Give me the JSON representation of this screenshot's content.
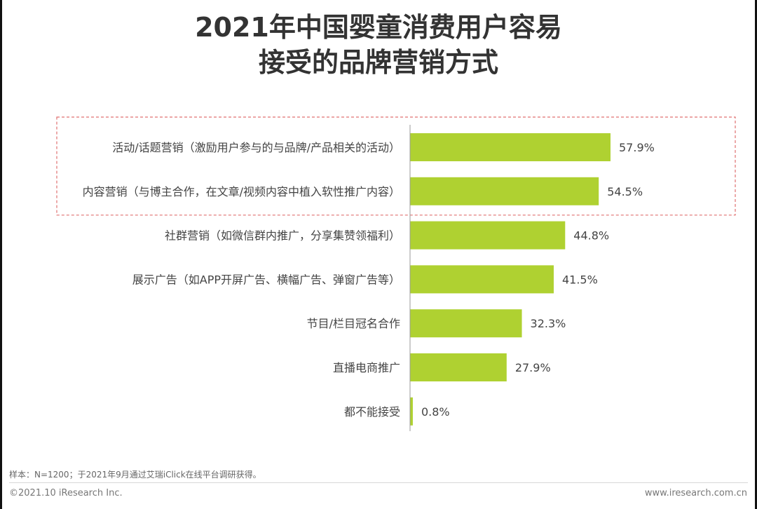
{
  "title": {
    "line1": "2021年中国婴童消费用户容易",
    "line2": "接受的品牌营销方式"
  },
  "chart_data": {
    "type": "bar",
    "orientation": "horizontal",
    "categories": [
      "活动/话题营销（激励用户参与的与品牌/产品相关的活动）",
      "内容营销（与博主合作，在文章/视频内容中植入软性推广内容）",
      "社群营销（如微信群内推广，分享集赞领福利）",
      "展示广告（如APP开屏广告、横幅广告、弹窗广告等）",
      "节目/栏目冠名合作",
      "直播电商推广",
      "都不能接受"
    ],
    "values": [
      57.9,
      54.5,
      44.8,
      41.5,
      32.3,
      27.9,
      0.8
    ],
    "value_labels": [
      "57.9%",
      "54.5%",
      "44.8%",
      "41.5%",
      "32.3%",
      "27.9%",
      "0.8%"
    ],
    "highlighted_categories": [
      0,
      1
    ],
    "xlim": [
      0,
      100
    ],
    "grid": false,
    "bar_color": "#afd131",
    "highlight_border_color": "#e07070"
  },
  "footer": {
    "note": "样本：N=1200；于2021年9月通过艾瑞iClick在线平台调研获得。",
    "copyright": "©2021.10 iResearch Inc.",
    "website": "www.iresearch.com.cn"
  }
}
